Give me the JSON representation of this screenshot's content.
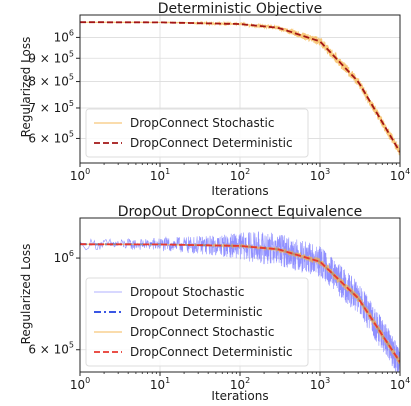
{
  "chart_data": [
    {
      "type": "line",
      "title": "Deterministic Objective",
      "xlabel": "Iterations",
      "ylabel": "Regularized Loss",
      "xscale": "log",
      "yscale": "log",
      "xlim": [
        1,
        10000
      ],
      "ylim": [
        530000,
        1120000
      ],
      "grid": true,
      "legend_position": "lower-left",
      "x_ticks": [
        {
          "base": "10",
          "exp": "0",
          "value": 1
        },
        {
          "base": "10",
          "exp": "1",
          "value": 10
        },
        {
          "base": "10",
          "exp": "2",
          "value": 100
        },
        {
          "base": "10",
          "exp": "3",
          "value": 1000
        },
        {
          "base": "10",
          "exp": "4",
          "value": 10000
        }
      ],
      "y_ticks": [
        {
          "base": "10",
          "exp": "6",
          "value": 1000000
        },
        {
          "base": "9 × 10",
          "exp": "5",
          "value": 900000
        },
        {
          "base": "8 × 10",
          "exp": "5",
          "value": 800000
        },
        {
          "base": "7 × 10",
          "exp": "5",
          "value": 700000
        },
        {
          "base": "6 × 10",
          "exp": "5",
          "value": 600000
        }
      ],
      "series": [
        {
          "name": "DropConnect Stochastic",
          "style": "noisy-band",
          "color": "#f5b041",
          "x": [
            1,
            10,
            100,
            300,
            1000,
            3000,
            10000
          ],
          "y": [
            1080000,
            1079000,
            1070000,
            1050000,
            980000,
            800000,
            560000
          ],
          "noise_rel": 0.022
        },
        {
          "name": "DropConnect Deterministic",
          "style": "dashed",
          "color": "#a31515",
          "x": [
            1,
            10,
            100,
            300,
            1000,
            3000,
            10000
          ],
          "y": [
            1080000,
            1079000,
            1070000,
            1050000,
            980000,
            800000,
            560000
          ]
        }
      ]
    },
    {
      "type": "line",
      "title": "DropOut DropConnect Equivalence",
      "xlabel": "Iterations",
      "ylabel": "Regularized Loss",
      "xscale": "log",
      "yscale": "log",
      "xlim": [
        1,
        10000
      ],
      "ylim": [
        530000,
        1250000
      ],
      "grid": true,
      "legend_position": "lower-left",
      "x_ticks": [
        {
          "base": "10",
          "exp": "0",
          "value": 1
        },
        {
          "base": "10",
          "exp": "1",
          "value": 10
        },
        {
          "base": "10",
          "exp": "2",
          "value": 100
        },
        {
          "base": "10",
          "exp": "3",
          "value": 1000
        },
        {
          "base": "10",
          "exp": "4",
          "value": 10000
        }
      ],
      "y_ticks": [
        {
          "base": "10",
          "exp": "6",
          "value": 1000000
        },
        {
          "base": "6 × 10",
          "exp": "5",
          "value": 600000
        }
      ],
      "series": [
        {
          "name": "Dropout Stochastic",
          "style": "noisy-thin",
          "color": "#6b6bff",
          "x": [
            1,
            10,
            100,
            300,
            1000,
            3000,
            10000
          ],
          "y": [
            1080000,
            1079000,
            1070000,
            1050000,
            980000,
            800000,
            560000
          ],
          "noise_rel": 0.09
        },
        {
          "name": "Dropout Deterministic",
          "style": "dashdot",
          "color": "#1f3fe0",
          "x": [
            1,
            10,
            100,
            300,
            1000,
            3000,
            10000
          ],
          "y": [
            1080000,
            1079000,
            1070000,
            1050000,
            980000,
            800000,
            560000
          ]
        },
        {
          "name": "DropConnect Stochastic",
          "style": "noisy-band",
          "color": "#f5b041",
          "x": [
            1,
            10,
            100,
            300,
            1000,
            3000,
            10000
          ],
          "y": [
            1080000,
            1079000,
            1070000,
            1050000,
            980000,
            800000,
            560000
          ],
          "noise_rel": 0.02
        },
        {
          "name": "DropConnect Deterministic",
          "style": "dashed",
          "color": "#e8382e",
          "x": [
            1,
            10,
            100,
            300,
            1000,
            3000,
            10000
          ],
          "y": [
            1080000,
            1079000,
            1070000,
            1050000,
            980000,
            800000,
            560000
          ]
        }
      ]
    }
  ]
}
